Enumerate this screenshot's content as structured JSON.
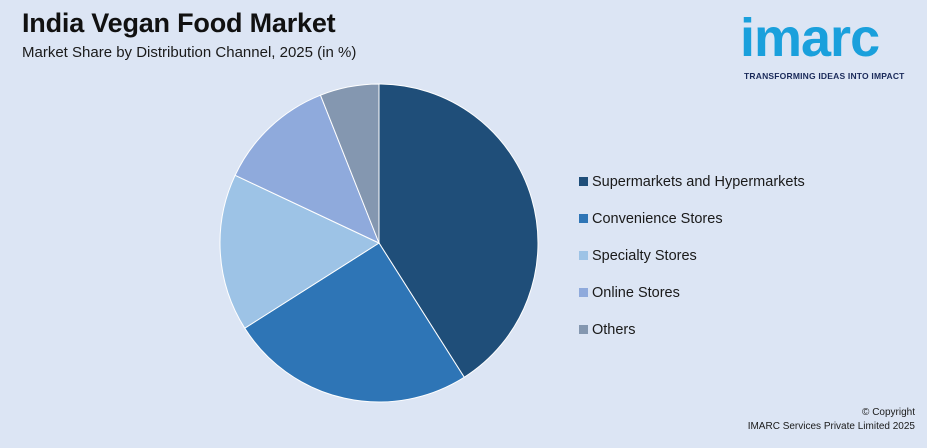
{
  "header": {
    "title": "India Vegan Food Market",
    "subtitle": "Market Share by Distribution Channel, 2025 (in %)"
  },
  "logo": {
    "name": "imarc",
    "tagline": "TRANSFORMING IDEAS INTO IMPACT",
    "color": "#1aa0dc"
  },
  "footer": {
    "copyright": "© Copyright",
    "company": "IMARC Services Private Limited 2025"
  },
  "chart_data": {
    "type": "pie",
    "title": "India Vegan Food Market",
    "subtitle": "Market Share by Distribution Channel, 2025 (in %)",
    "categories": [
      "Supermarkets and Hypermarkets",
      "Convenience Stores",
      "Specialty Stores",
      "Online Stores",
      "Others"
    ],
    "values": [
      41,
      25,
      16,
      12,
      6
    ],
    "colors": [
      "#1f4e79",
      "#2e75b6",
      "#9dc3e6",
      "#8faadc",
      "#8497b0"
    ],
    "legend_position": "right"
  }
}
